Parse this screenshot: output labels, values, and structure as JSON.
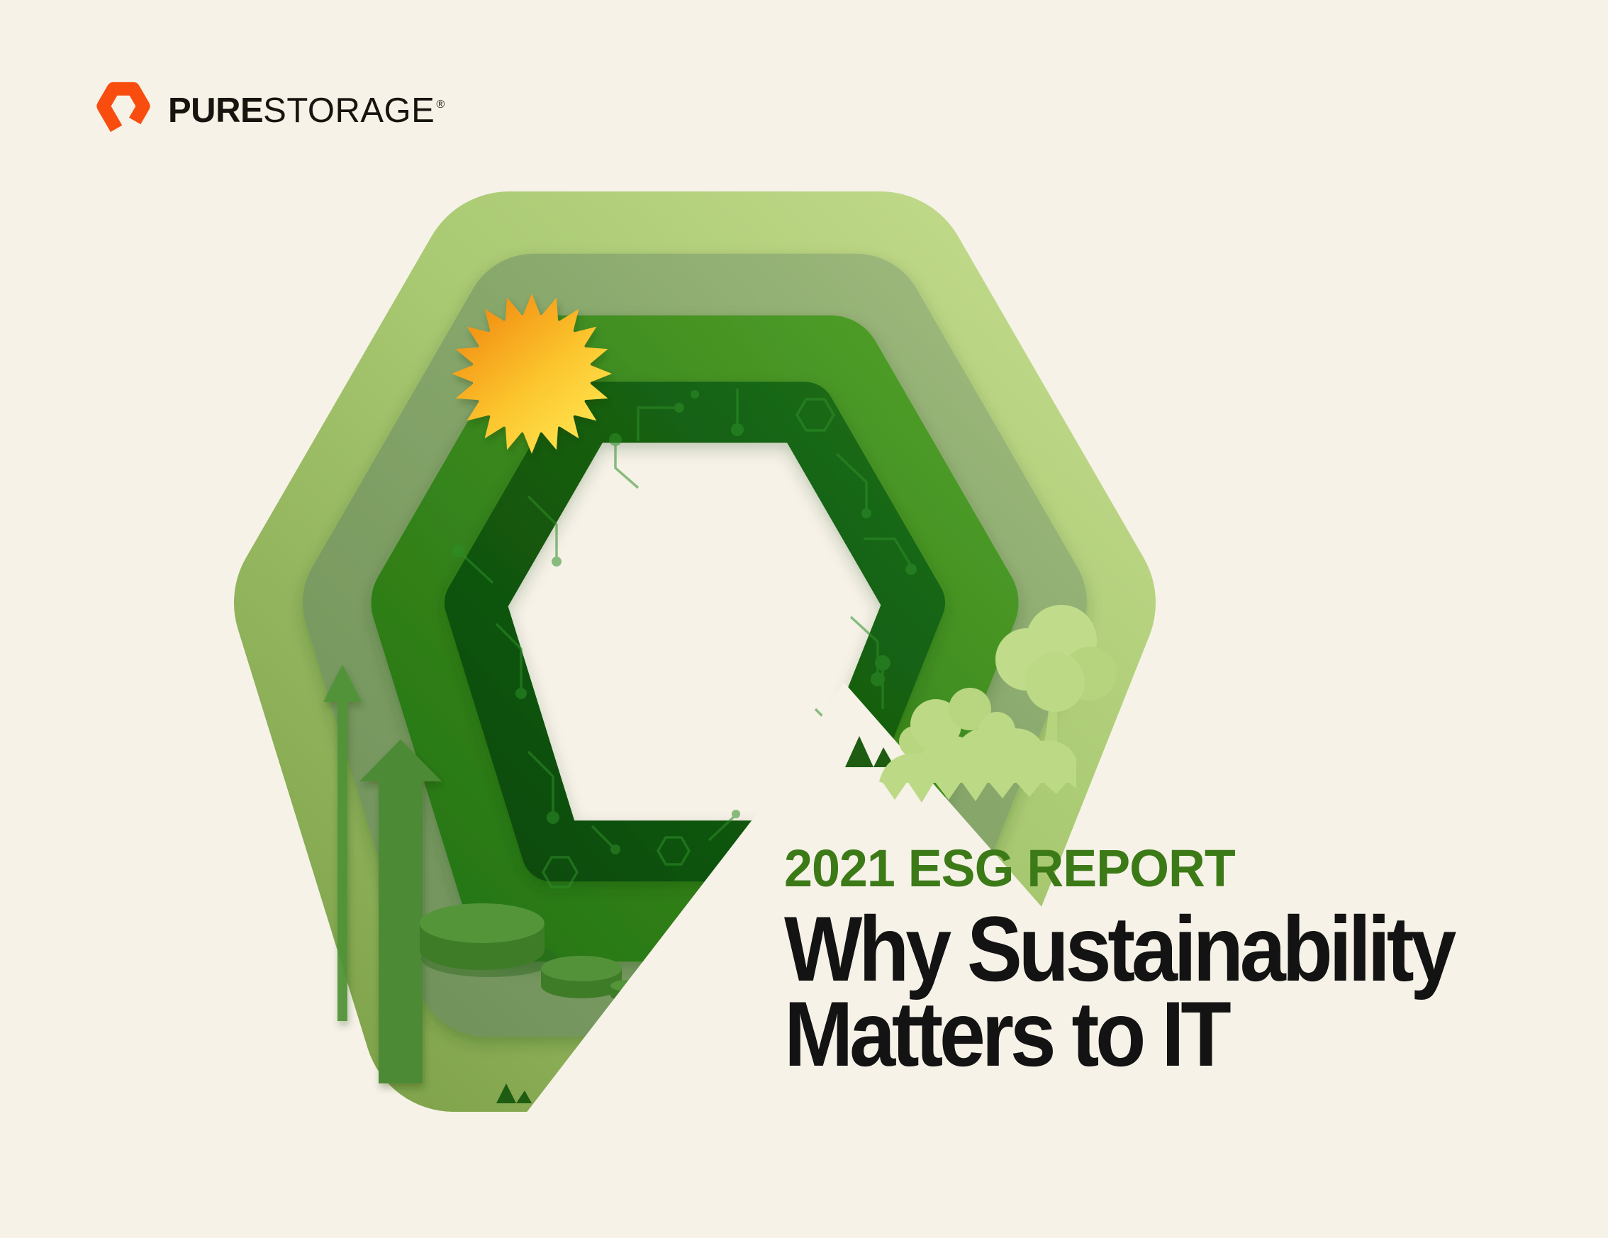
{
  "page": {
    "background_color": "#f6f2e7",
    "type": "report cover"
  },
  "logo": {
    "brand_bold": "PURE",
    "brand_light": "STORAGE",
    "trademark": "®",
    "mark_color": "#f94d10",
    "text_color": "#17140f"
  },
  "title": {
    "eyebrow": "2021 ESG REPORT",
    "eyebrow_color": "#3c7a18",
    "heading_line1": "Why Sustainability",
    "heading_line2": "Matters to IT",
    "heading_color": "#131313"
  },
  "illustration": {
    "subject": "paper-cut layered Pure Storage hexagon logomark with eco scene",
    "icons": [
      "sun-icon",
      "growth-arrows-icon",
      "coin-stack-icon",
      "tree-icon",
      "bushes-icon",
      "circuit-traces-icon",
      "pine-trees-icon"
    ],
    "layer_colors": {
      "outer_light_green": "#a9c972",
      "sage_green": "#88a86c",
      "bright_green": "#3f8c1f",
      "dark_green": "#145c10"
    },
    "accent_colors": {
      "sun_orange": "#f28f13",
      "sun_yellow": "#ffdf4d",
      "bush_light_green": "#bcd986",
      "arrow_green": "#4f9438",
      "circuit_green": "#2f8f28"
    }
  }
}
